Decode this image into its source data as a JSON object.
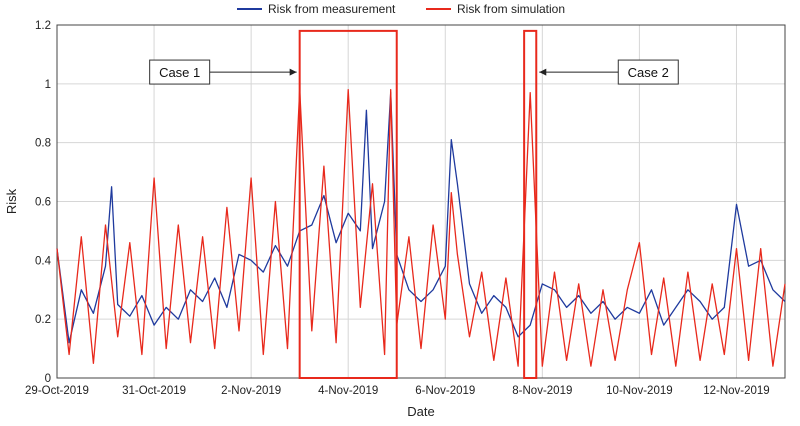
{
  "chart_data": {
    "type": "line",
    "title": "",
    "xlabel": "Date",
    "ylabel": "Risk",
    "x_ticks": [
      "29-Oct-2019",
      "31-Oct-2019",
      "2-Nov-2019",
      "4-Nov-2019",
      "6-Nov-2019",
      "8-Nov-2019",
      "10-Nov-2019",
      "12-Nov-2019"
    ],
    "y_ticks": [
      "0",
      "0.2",
      "0.4",
      "0.6",
      "0.8",
      "1",
      "1.2"
    ],
    "xlim": [
      "2019-10-29",
      "2019-11-13"
    ],
    "ylim": [
      0,
      1.2
    ],
    "grid": true,
    "legend_position": "top",
    "series": [
      {
        "name": "Risk from measurement",
        "color": "#1f3a9e",
        "points": [
          [
            "2019-10-29T00:00",
            0.44
          ],
          [
            "2019-10-29T06:00",
            0.12
          ],
          [
            "2019-10-29T12:00",
            0.3
          ],
          [
            "2019-10-29T18:00",
            0.22
          ],
          [
            "2019-10-30T00:00",
            0.38
          ],
          [
            "2019-10-30T03:00",
            0.65
          ],
          [
            "2019-10-30T06:00",
            0.25
          ],
          [
            "2019-10-30T12:00",
            0.21
          ],
          [
            "2019-10-30T18:00",
            0.28
          ],
          [
            "2019-10-31T00:00",
            0.18
          ],
          [
            "2019-10-31T06:00",
            0.24
          ],
          [
            "2019-10-31T12:00",
            0.2
          ],
          [
            "2019-10-31T18:00",
            0.3
          ],
          [
            "2019-11-01T00:00",
            0.26
          ],
          [
            "2019-11-01T06:00",
            0.34
          ],
          [
            "2019-11-01T12:00",
            0.24
          ],
          [
            "2019-11-01T18:00",
            0.42
          ],
          [
            "2019-11-02T00:00",
            0.4
          ],
          [
            "2019-11-02T06:00",
            0.36
          ],
          [
            "2019-11-02T12:00",
            0.45
          ],
          [
            "2019-11-02T18:00",
            0.38
          ],
          [
            "2019-11-03T00:00",
            0.5
          ],
          [
            "2019-11-03T06:00",
            0.52
          ],
          [
            "2019-11-03T12:00",
            0.62
          ],
          [
            "2019-11-03T18:00",
            0.46
          ],
          [
            "2019-11-04T00:00",
            0.56
          ],
          [
            "2019-11-04T06:00",
            0.5
          ],
          [
            "2019-11-04T09:00",
            0.91
          ],
          [
            "2019-11-04T12:00",
            0.44
          ],
          [
            "2019-11-04T18:00",
            0.6
          ],
          [
            "2019-11-04T21:00",
            0.97
          ],
          [
            "2019-11-05T00:00",
            0.42
          ],
          [
            "2019-11-05T06:00",
            0.3
          ],
          [
            "2019-11-05T12:00",
            0.26
          ],
          [
            "2019-11-05T18:00",
            0.3
          ],
          [
            "2019-11-06T00:00",
            0.38
          ],
          [
            "2019-11-06T03:00",
            0.81
          ],
          [
            "2019-11-06T06:00",
            0.66
          ],
          [
            "2019-11-06T12:00",
            0.32
          ],
          [
            "2019-11-06T18:00",
            0.22
          ],
          [
            "2019-11-07T00:00",
            0.28
          ],
          [
            "2019-11-07T06:00",
            0.24
          ],
          [
            "2019-11-07T12:00",
            0.14
          ],
          [
            "2019-11-07T18:00",
            0.18
          ],
          [
            "2019-11-08T00:00",
            0.32
          ],
          [
            "2019-11-08T06:00",
            0.3
          ],
          [
            "2019-11-08T12:00",
            0.24
          ],
          [
            "2019-11-08T18:00",
            0.28
          ],
          [
            "2019-11-09T00:00",
            0.22
          ],
          [
            "2019-11-09T06:00",
            0.26
          ],
          [
            "2019-11-09T12:00",
            0.2
          ],
          [
            "2019-11-09T18:00",
            0.24
          ],
          [
            "2019-11-10T00:00",
            0.22
          ],
          [
            "2019-11-10T06:00",
            0.3
          ],
          [
            "2019-11-10T12:00",
            0.18
          ],
          [
            "2019-11-10T18:00",
            0.24
          ],
          [
            "2019-11-11T00:00",
            0.3
          ],
          [
            "2019-11-11T06:00",
            0.26
          ],
          [
            "2019-11-11T12:00",
            0.2
          ],
          [
            "2019-11-11T18:00",
            0.24
          ],
          [
            "2019-11-12T00:00",
            0.59
          ],
          [
            "2019-11-12T06:00",
            0.38
          ],
          [
            "2019-11-12T12:00",
            0.4
          ],
          [
            "2019-11-12T18:00",
            0.3
          ],
          [
            "2019-11-13T00:00",
            0.26
          ]
        ]
      },
      {
        "name": "Risk from simulation",
        "color": "#e8291c",
        "points": [
          [
            "2019-10-29T00:00",
            0.44
          ],
          [
            "2019-10-29T06:00",
            0.08
          ],
          [
            "2019-10-29T12:00",
            0.48
          ],
          [
            "2019-10-29T18:00",
            0.05
          ],
          [
            "2019-10-30T00:00",
            0.52
          ],
          [
            "2019-10-30T06:00",
            0.14
          ],
          [
            "2019-10-30T12:00",
            0.46
          ],
          [
            "2019-10-30T18:00",
            0.08
          ],
          [
            "2019-10-31T00:00",
            0.68
          ],
          [
            "2019-10-31T06:00",
            0.1
          ],
          [
            "2019-10-31T12:00",
            0.52
          ],
          [
            "2019-10-31T18:00",
            0.12
          ],
          [
            "2019-11-01T00:00",
            0.48
          ],
          [
            "2019-11-01T06:00",
            0.1
          ],
          [
            "2019-11-01T12:00",
            0.58
          ],
          [
            "2019-11-01T18:00",
            0.16
          ],
          [
            "2019-11-02T00:00",
            0.68
          ],
          [
            "2019-11-02T06:00",
            0.08
          ],
          [
            "2019-11-02T12:00",
            0.6
          ],
          [
            "2019-11-02T18:00",
            0.1
          ],
          [
            "2019-11-03T00:00",
            0.98
          ],
          [
            "2019-11-03T06:00",
            0.16
          ],
          [
            "2019-11-03T12:00",
            0.72
          ],
          [
            "2019-11-03T18:00",
            0.12
          ],
          [
            "2019-11-04T00:00",
            0.98
          ],
          [
            "2019-11-04T06:00",
            0.24
          ],
          [
            "2019-11-04T12:00",
            0.66
          ],
          [
            "2019-11-04T18:00",
            0.08
          ],
          [
            "2019-11-04T21:00",
            0.98
          ],
          [
            "2019-11-05T00:00",
            0.18
          ],
          [
            "2019-11-05T06:00",
            0.48
          ],
          [
            "2019-11-05T12:00",
            0.1
          ],
          [
            "2019-11-05T18:00",
            0.52
          ],
          [
            "2019-11-06T00:00",
            0.2
          ],
          [
            "2019-11-06T03:00",
            0.63
          ],
          [
            "2019-11-06T06:00",
            0.42
          ],
          [
            "2019-11-06T12:00",
            0.14
          ],
          [
            "2019-11-06T18:00",
            0.36
          ],
          [
            "2019-11-07T00:00",
            0.06
          ],
          [
            "2019-11-07T06:00",
            0.34
          ],
          [
            "2019-11-07T12:00",
            0.04
          ],
          [
            "2019-11-07T18:00",
            0.97
          ],
          [
            "2019-11-08T00:00",
            0.04
          ],
          [
            "2019-11-08T06:00",
            0.36
          ],
          [
            "2019-11-08T12:00",
            0.06
          ],
          [
            "2019-11-08T18:00",
            0.32
          ],
          [
            "2019-11-09T00:00",
            0.04
          ],
          [
            "2019-11-09T06:00",
            0.3
          ],
          [
            "2019-11-09T12:00",
            0.06
          ],
          [
            "2019-11-09T18:00",
            0.3
          ],
          [
            "2019-11-10T00:00",
            0.46
          ],
          [
            "2019-11-10T06:00",
            0.08
          ],
          [
            "2019-11-10T12:00",
            0.34
          ],
          [
            "2019-11-10T18:00",
            0.04
          ],
          [
            "2019-11-11T00:00",
            0.36
          ],
          [
            "2019-11-11T06:00",
            0.06
          ],
          [
            "2019-11-11T12:00",
            0.32
          ],
          [
            "2019-11-11T18:00",
            0.08
          ],
          [
            "2019-11-12T00:00",
            0.44
          ],
          [
            "2019-11-12T06:00",
            0.06
          ],
          [
            "2019-11-12T12:00",
            0.44
          ],
          [
            "2019-11-12T18:00",
            0.04
          ],
          [
            "2019-11-13T00:00",
            0.32
          ]
        ]
      }
    ],
    "annotations": [
      {
        "label": "Case 1",
        "x_range": [
          "2019-11-03T00:00",
          "2019-11-05T00:00"
        ],
        "y_range": [
          0,
          1.18
        ],
        "label_side": "left"
      },
      {
        "label": "Case 2",
        "x_range": [
          "2019-11-07T15:00",
          "2019-11-07T21:00"
        ],
        "y_range": [
          0,
          1.18
        ],
        "label_side": "right"
      }
    ],
    "highlight_color": "#e8291c"
  }
}
